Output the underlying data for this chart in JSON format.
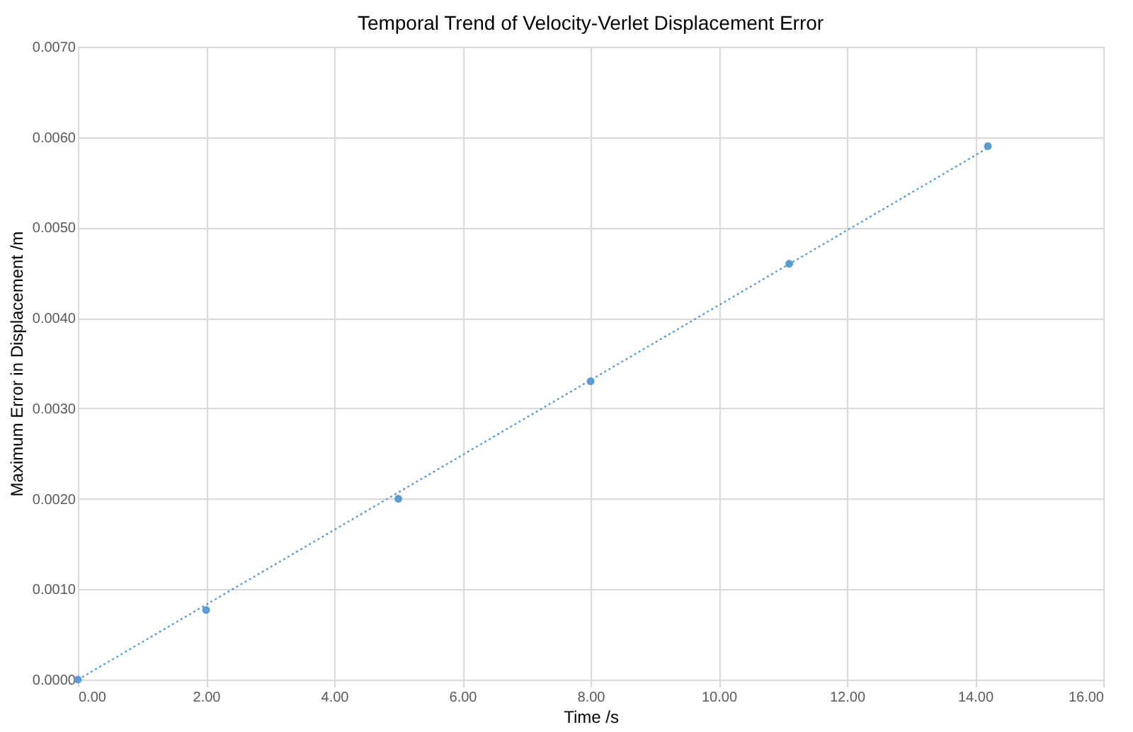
{
  "chart_data": {
    "type": "scatter",
    "title": "Temporal Trend of Velocity-Verlet Displacement Error",
    "xlabel": "Time /s",
    "ylabel": "Maximum Error in Displacement /m",
    "series": [
      {
        "type": "scatter",
        "color": "#5b9bd5",
        "marker": "circle",
        "x": [
          0,
          2.0,
          5.0,
          8.0,
          11.1,
          14.2
        ],
        "values": [
          0,
          0.00077,
          0.002,
          0.0033,
          0.0046,
          0.0059
        ]
      },
      {
        "type": "line",
        "color": "#5b9bd5",
        "line_style": "dotted",
        "marker": "none",
        "x": [
          0,
          14.2
        ],
        "values": [
          0,
          0.00588
        ]
      }
    ],
    "xlim": [
      0,
      16
    ],
    "ylim": [
      0,
      0.007
    ],
    "xticks": [
      {
        "value": 0,
        "label": "0.00"
      },
      {
        "value": 2,
        "label": "2.00"
      },
      {
        "value": 4,
        "label": "4.00"
      },
      {
        "value": 6,
        "label": "6.00"
      },
      {
        "value": 8,
        "label": "8.00"
      },
      {
        "value": 10,
        "label": "10.00"
      },
      {
        "value": 12,
        "label": "12.00"
      },
      {
        "value": 14,
        "label": "14.00"
      },
      {
        "value": 16,
        "label": "16.00"
      }
    ],
    "yticks": [
      {
        "value": 0,
        "label": "0.0000"
      },
      {
        "value": 0.001,
        "label": "0.0010"
      },
      {
        "value": 0.002,
        "label": "0.0020"
      },
      {
        "value": 0.003,
        "label": "0.0030"
      },
      {
        "value": 0.004,
        "label": "0.0040"
      },
      {
        "value": 0.005,
        "label": "0.0050"
      },
      {
        "value": 0.006,
        "label": "0.0060"
      },
      {
        "value": 0.007,
        "label": "0.0070"
      }
    ],
    "grid": true,
    "legend": false
  }
}
